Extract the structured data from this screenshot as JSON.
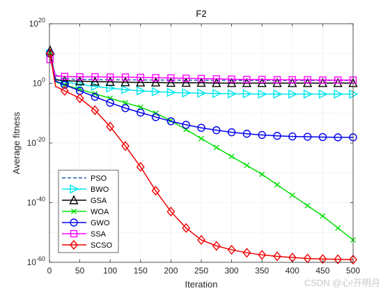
{
  "chart_data": {
    "type": "line",
    "title": "F2",
    "xlabel": "Iteration",
    "ylabel": "Average fitness",
    "xlim": [
      0,
      500
    ],
    "ylim_exponent": [
      -60,
      20
    ],
    "yscale": "log",
    "grid": true,
    "legend_placement": "bottom-left",
    "x_ticks": [
      0,
      50,
      100,
      150,
      200,
      250,
      300,
      350,
      400,
      450,
      500
    ],
    "y_tick_base": "10",
    "y_tick_exponents": [
      "20",
      "0",
      "-20",
      "-40",
      "-60"
    ],
    "series": [
      {
        "name": "PSO",
        "color": "#1f5fa8",
        "style": "dashed",
        "marker": "none",
        "x": [
          1,
          3,
          10,
          20,
          50,
          100,
          200,
          300,
          400,
          500
        ],
        "log10_y": [
          10,
          7,
          3,
          1.6,
          1.3,
          1.2,
          1.1,
          1.0,
          1.0,
          1.0
        ]
      },
      {
        "name": "BWO",
        "color": "#00e5ee",
        "style": "solid",
        "marker": "triangle-right",
        "x": [
          1,
          10,
          25,
          50,
          75,
          100,
          125,
          150,
          175,
          200,
          225,
          250,
          275,
          300,
          325,
          350,
          375,
          400,
          425,
          450,
          475,
          500
        ],
        "log10_y": [
          10,
          1.5,
          0.5,
          -0.3,
          -1.0,
          -1.6,
          -2.1,
          -2.5,
          -2.8,
          -3.0,
          -3.2,
          -3.3,
          -3.4,
          -3.5,
          -3.5,
          -3.6,
          -3.6,
          -3.6,
          -3.6,
          -3.6,
          -3.6,
          -3.6
        ]
      },
      {
        "name": "GSA",
        "color": "#000000",
        "style": "solid",
        "marker": "triangle-up",
        "x": [
          1,
          10,
          25,
          50,
          75,
          100,
          125,
          150,
          175,
          200,
          225,
          250,
          275,
          300,
          325,
          350,
          375,
          400,
          425,
          450,
          475,
          500
        ],
        "log10_y": [
          11,
          1.2,
          0.9,
          0.7,
          0.6,
          0.5,
          0.4,
          0.3,
          0.3,
          0.2,
          0.2,
          0.2,
          0.1,
          0.1,
          0.1,
          0.1,
          0.1,
          0.1,
          0.1,
          0.1,
          0.1,
          0.1
        ]
      },
      {
        "name": "WOA",
        "color": "#00dd00",
        "style": "solid",
        "marker": "x",
        "x": [
          1,
          10,
          25,
          50,
          75,
          100,
          125,
          150,
          175,
          200,
          225,
          250,
          275,
          300,
          325,
          350,
          375,
          400,
          425,
          450,
          475,
          500
        ],
        "log10_y": [
          10,
          0.5,
          -0.5,
          -2.0,
          -3.5,
          -5.0,
          -6.5,
          -8.0,
          -10.0,
          -12.5,
          -15.5,
          -18.5,
          -21.5,
          -24.5,
          -27.5,
          -30.5,
          -34.0,
          -37.5,
          -41.0,
          -44.5,
          -48.5,
          -52.5
        ]
      },
      {
        "name": "GWO",
        "color": "#0000ee",
        "style": "solid",
        "marker": "circle",
        "x": [
          1,
          10,
          25,
          50,
          75,
          100,
          125,
          150,
          175,
          200,
          225,
          250,
          275,
          300,
          325,
          350,
          375,
          400,
          425,
          450,
          475,
          500
        ],
        "log10_y": [
          10,
          0.8,
          -0.5,
          -2.5,
          -4.5,
          -6.5,
          -8.3,
          -9.8,
          -11.3,
          -12.7,
          -13.9,
          -14.9,
          -15.7,
          -16.4,
          -16.9,
          -17.3,
          -17.6,
          -17.8,
          -17.9,
          -18.0,
          -18.1,
          -18.1
        ]
      },
      {
        "name": "SSA",
        "color": "#ff00ff",
        "style": "solid",
        "marker": "square",
        "x": [
          1,
          10,
          25,
          50,
          75,
          100,
          125,
          150,
          175,
          200,
          225,
          250,
          275,
          300,
          325,
          350,
          375,
          400,
          425,
          450,
          475,
          500
        ],
        "log10_y": [
          8,
          2.5,
          2.3,
          2.2,
          2.2,
          2.1,
          2.1,
          2.0,
          1.9,
          1.8,
          1.7,
          1.6,
          1.5,
          1.4,
          1.3,
          1.3,
          1.2,
          1.2,
          1.2,
          1.1,
          1.1,
          1.1
        ]
      },
      {
        "name": "SCSO",
        "color": "#ee0000",
        "style": "solid",
        "marker": "diamond",
        "x": [
          1,
          10,
          25,
          50,
          75,
          100,
          125,
          150,
          175,
          200,
          225,
          250,
          275,
          300,
          325,
          350,
          375,
          400,
          425,
          450,
          475,
          500
        ],
        "log10_y": [
          10,
          -1.0,
          -2.5,
          -5.0,
          -9.0,
          -14.5,
          -21.0,
          -28.0,
          -36.0,
          -43.0,
          -48.5,
          -52.5,
          -54.5,
          -55.8,
          -56.8,
          -57.5,
          -58.0,
          -58.4,
          -58.7,
          -58.9,
          -59.0,
          -59.1
        ]
      }
    ]
  },
  "watermark": "CSDN @心!开明月"
}
